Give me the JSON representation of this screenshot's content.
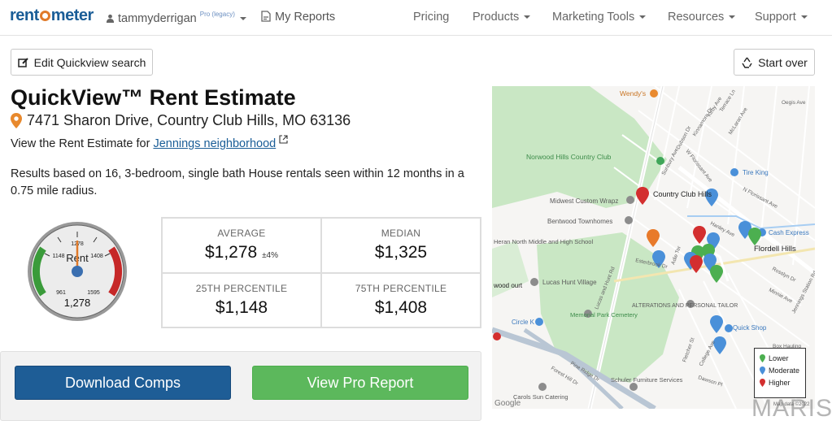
{
  "nav": {
    "logo_pre": "rent",
    "logo_post": "meter",
    "user": "tammyderrigan",
    "user_badge": "Pro (legacy)",
    "my_reports": "My Reports",
    "links": [
      "Pricing",
      "Products",
      "Marketing Tools",
      "Resources",
      "Support"
    ]
  },
  "toolbar": {
    "edit_label": "Edit Quickview search",
    "start_over_label": "Start over"
  },
  "page": {
    "title": "QuickView™ Rent Estimate",
    "address": "7471 Sharon Drive, Country Club Hills, MO 63136",
    "neighborhood_prefix": "View the Rent Estimate for ",
    "neighborhood_link": "Jennings neighborhood",
    "results": "Results based on 16, 3-bedroom, single bath House rentals seen within 12 months in a 0.75 mile radius."
  },
  "gauge": {
    "center_label": "Rent",
    "value": "1,278",
    "tick_low": "961",
    "tick_p25": "1148",
    "tick_avg": "1278",
    "tick_p75": "1408",
    "tick_high": "1595",
    "needle_fraction": 0.5
  },
  "stats": {
    "average": {
      "label": "AVERAGE",
      "value": "$1,278",
      "note": "±4%"
    },
    "median": {
      "label": "MEDIAN",
      "value": "$1,325"
    },
    "p25": {
      "label": "25TH PERCENTILE",
      "value": "$1,148"
    },
    "p75": {
      "label": "75TH PERCENTILE",
      "value": "$1,408"
    }
  },
  "actions": {
    "download": "Download Comps",
    "pro_report": "View Pro Report"
  },
  "map": {
    "labels": {
      "wendys": "Wendy's",
      "norwood": "Norwood Hills Country Club",
      "country_club": "Country Club Hills",
      "midwest": "Midwest Custom Wrapz",
      "bentwood": "Bentwood Townhomes",
      "tire_king": "Tire King",
      "cash_express": "Cash Express",
      "flordell": "Flordell Hills",
      "lucas": "Lucas Hunt Village",
      "alterations": "ALTERATIONS AND PERSONAL TAILOR",
      "school": "Heran North Middle and High School",
      "memorial": "Memorial Park Cemetery",
      "quick_shop": "Quick Shop",
      "circle_k": "Circle K",
      "schuler": "Schuler Furniture Services",
      "carols": "Carols Sun Catering",
      "wood": "wood ourt",
      "google": "Google",
      "map_data": "Map data ©2022"
    },
    "streets": [
      "W Florissant Ave",
      "N Florissant Ave",
      "Lucas and Hunt Rd",
      "Forest Hill Dr",
      "Pine Ridge Dr",
      "Esterbrook Dr",
      "College Ave",
      "Fletcher St",
      "Dawson Pl",
      "Jennings Station Rd",
      "Minnie Ave",
      "Rosslyn Dr",
      "Hanley Ave",
      "Oegis Ave",
      "Terrace Ln",
      "McLaran Ave",
      "Kirby Ave",
      "Sunbury Ave",
      "Dubson Dr",
      "Kinnamore Dr",
      "Adie Ter",
      "Box Hauling"
    ],
    "legend": {
      "lower": "Lower",
      "moderate": "Moderate",
      "higher": "Higher"
    },
    "colors": {
      "lower": "#4caf50",
      "moderate": "#4a90d9",
      "higher": "#d32f2f"
    }
  },
  "colors": {
    "brand": "#1a5d97",
    "download_bg": "#1e5d96",
    "pro_bg": "#5cb85c",
    "accent": "#e07a2a"
  },
  "watermark": "MARIS"
}
